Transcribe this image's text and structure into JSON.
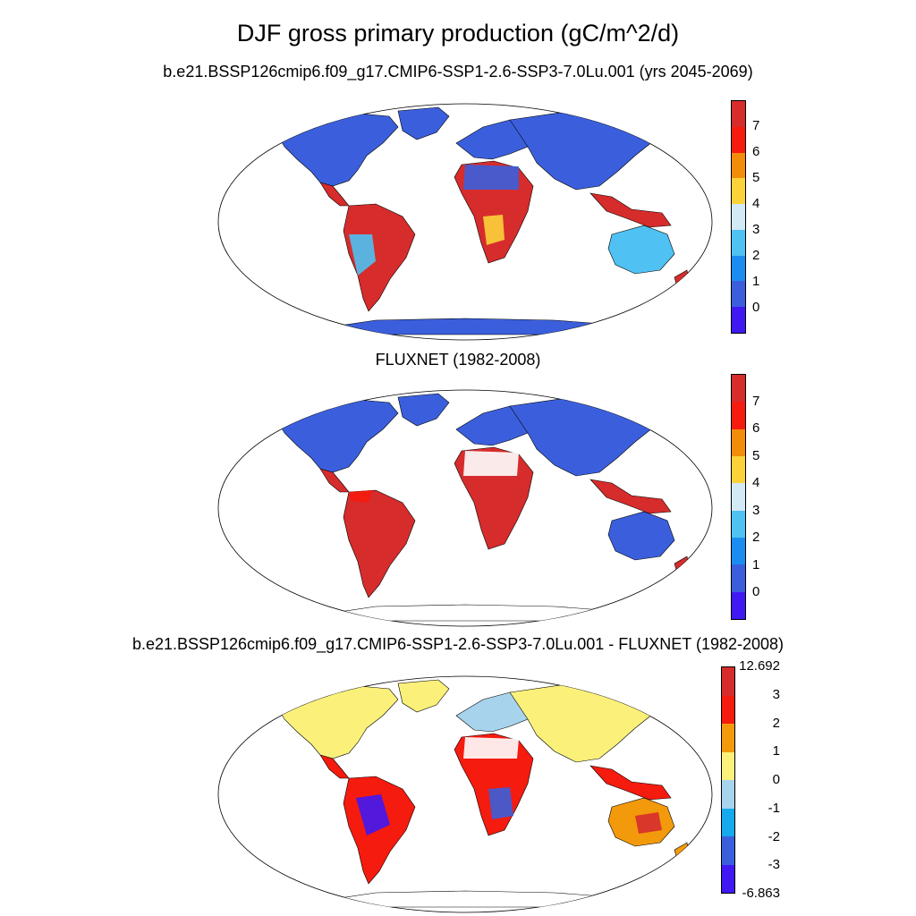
{
  "title": "DJF gross primary production (gC/m^2/d)",
  "panels": [
    {
      "title": "b.e21.BSSP126cmip6.f09_g17.CMIP6-SSP1-2.6-SSP3-7.0Lu.001 (yrs 2045-2069)",
      "colorbar": {
        "colors": [
          "#d62c2c",
          "#f51b0e",
          "#f28c0b",
          "#fbd23a",
          "#d3e9f6",
          "#4fc1f2",
          "#1b8df0",
          "#3b5fdc",
          "#4018f2"
        ],
        "labels": [
          "7",
          "6",
          "5",
          "4",
          "3",
          "2",
          "1",
          "0"
        ]
      },
      "region_colors": {
        "ocean": "#ffffff",
        "land_default": "#3b5fdc"
      }
    },
    {
      "title": "FLUXNET (1982-2008)",
      "colorbar": {
        "colors": [
          "#d62c2c",
          "#f51b0e",
          "#f28c0b",
          "#fbd23a",
          "#d3e9f6",
          "#4fc1f2",
          "#1b8df0",
          "#3b5fdc",
          "#4018f2"
        ],
        "labels": [
          "7",
          "6",
          "5",
          "4",
          "3",
          "2",
          "1",
          "0"
        ]
      },
      "region_colors": {
        "ocean": "#ffffff",
        "land_default": "#3b5fdc"
      }
    },
    {
      "title": "b.e21.BSSP126cmip6.f09_g17.CMIP6-SSP1-2.6-SSP3-7.0Lu.001 - FLUXNET (1982-2008)",
      "colorbar": {
        "colors": [
          "#d62c2c",
          "#f51b0e",
          "#f29a0b",
          "#fbf17a",
          "#a8d3ec",
          "#16a9ee",
          "#3b5fdc",
          "#4018f2"
        ],
        "labels": [
          "12.692",
          "3",
          "2",
          "1",
          "0",
          "-1",
          "-2",
          "-3",
          "-6.863"
        ]
      },
      "region_colors": {
        "ocean": "#ffffff",
        "land_default": "#fbf17a"
      }
    }
  ]
}
